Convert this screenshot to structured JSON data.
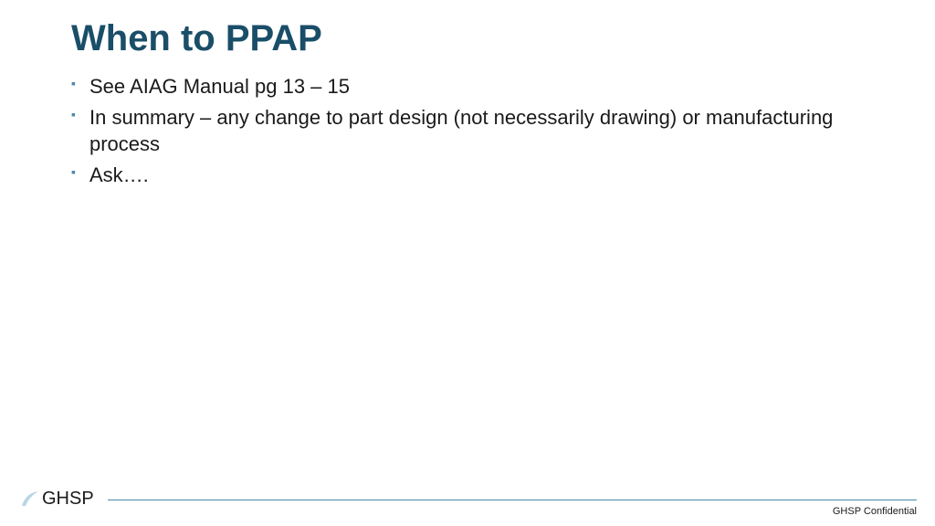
{
  "colors": {
    "title": "#1a4e68",
    "bullet_marker": "#4a8aa8",
    "body_text": "#1a1a1a",
    "footer_line": "#4a8aa8",
    "logo_swoosh": "#9cc5d8",
    "logo_text": "#1a1a1a",
    "background": "#ffffff"
  },
  "typography": {
    "title_fontsize": 40,
    "title_weight": "bold",
    "body_fontsize": 22,
    "confidential_fontsize": 11
  },
  "title": "When to PPAP",
  "bullets": [
    "See AIAG Manual pg 13 – 15",
    "In summary – any change to part design (not necessarily drawing) or manufacturing process",
    "Ask…."
  ],
  "footer": {
    "logo_text": "GHSP",
    "confidential": "GHSP Confidential"
  }
}
